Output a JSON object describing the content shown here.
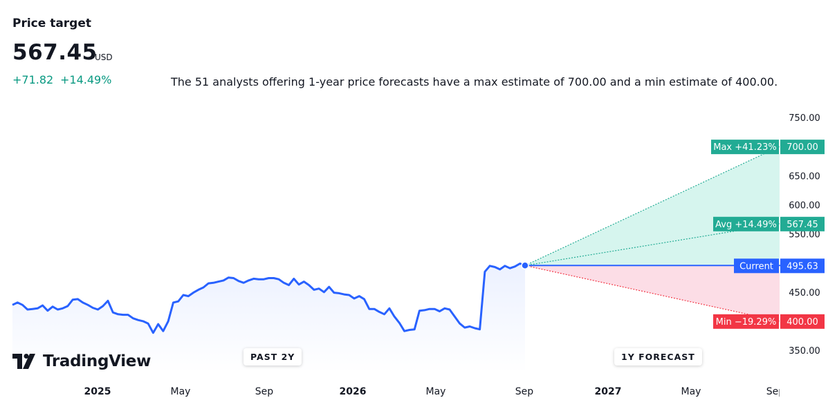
{
  "header": {
    "title": "Price target",
    "price": "567.45",
    "currency": "USD",
    "change_abs": "+71.82",
    "change_pct": "+14.49%"
  },
  "summary": "The 51 analysts offering 1-year price forecasts have a max estimate of 700.00 and a min estimate of 400.00.",
  "colors": {
    "history_line": "#2962ff",
    "up": "#089981",
    "badge_green": "#22ab94",
    "badge_red": "#f23645",
    "badge_blue": "#2962ff",
    "up_fill": "#d6f5ee",
    "down_fill": "#fcdde6"
  },
  "logo_text": "TradingView",
  "pills": {
    "past": "PAST 2Y",
    "forecast": "1Y FORECAST"
  },
  "chart_data": {
    "type": "line",
    "y_axis": {
      "ticks": [
        "750.00",
        "650.00",
        "600.00",
        "550.00",
        "450.00",
        "350.00"
      ],
      "tick_values": [
        750,
        650,
        600,
        550,
        450,
        350
      ]
    },
    "x_axis": {
      "ticks": [
        {
          "label": "2025",
          "bold": true
        },
        {
          "label": "May",
          "bold": false
        },
        {
          "label": "Sep",
          "bold": false
        },
        {
          "label": "2026",
          "bold": true
        },
        {
          "label": "May",
          "bold": false
        },
        {
          "label": "Sep",
          "bold": false
        },
        {
          "label": "2027",
          "bold": true
        },
        {
          "label": "May",
          "bold": false
        },
        {
          "label": "Sep",
          "bold": false
        }
      ]
    },
    "history": [
      428,
      432,
      428,
      420,
      421,
      422,
      427,
      418,
      425,
      420,
      422,
      426,
      437,
      438,
      432,
      428,
      423,
      420,
      426,
      435,
      415,
      412,
      411,
      411,
      405,
      402,
      400,
      396,
      380,
      395,
      383,
      400,
      432,
      434,
      445,
      443,
      449,
      454,
      458,
      465,
      466,
      468,
      470,
      475,
      474,
      469,
      466,
      470,
      473,
      472,
      472,
      474,
      474,
      472,
      466,
      462,
      473,
      463,
      468,
      462,
      454,
      456,
      450,
      459,
      449,
      448,
      446,
      445,
      439,
      443,
      438,
      421,
      421,
      416,
      412,
      422,
      408,
      397,
      383,
      385,
      386,
      418,
      419,
      421,
      421,
      417,
      422,
      420,
      408,
      396,
      389,
      391,
      388,
      386,
      485,
      495,
      493,
      489,
      495,
      491,
      494,
      499,
      495.63
    ],
    "forecast": {
      "current": {
        "label": "Current",
        "value": 495.63,
        "display": "495.63"
      },
      "max": {
        "label": "Max +41.23%",
        "value": 700.0,
        "display": "700.00"
      },
      "avg": {
        "label": "Avg +14.49%",
        "value": 567.45,
        "display": "567.45"
      },
      "min": {
        "label": "Min −19.29%",
        "value": 400.0,
        "display": "400.00"
      }
    },
    "grid": false,
    "legend": "none"
  }
}
